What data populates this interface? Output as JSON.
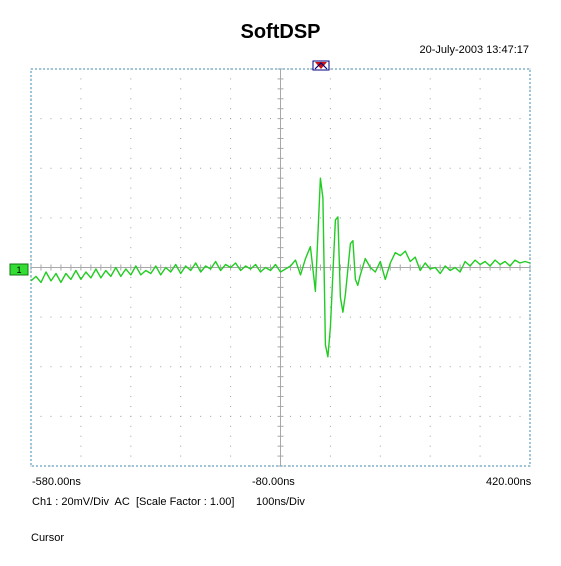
{
  "title": "SoftDSP",
  "timestamp": "20-July-2003 13:47:17",
  "channel": {
    "marker_label": "1",
    "status_parts": [
      "Ch1 : 20mV/Div",
      "AC",
      "[Scale Factor : 1.00]"
    ],
    "timebase": "100ns/Div"
  },
  "cursor_label": "Cursor",
  "colors": {
    "trace": "#22cc22",
    "grid_border": "#7fb2cc",
    "grid_dot": "#a0a0a0",
    "axis_line": "#a8a8a8",
    "trigger_marker": "#cc1111",
    "channel_marker": "#33dd33"
  },
  "chart_data": {
    "type": "line",
    "title": "SoftDSP",
    "xunit": "ns",
    "yunit": "mV",
    "tick_labels": [
      "-580.00ns",
      "-80.00ns",
      "420.00ns"
    ],
    "xlim": [
      -580,
      420
    ],
    "ylim": [
      -80,
      80
    ],
    "divisions": {
      "x": 10,
      "y": 8
    },
    "grid": true,
    "series": [
      {
        "points": [
          [
            -580,
            -5.4
          ],
          [
            -570,
            -3.6
          ],
          [
            -560,
            -6.0
          ],
          [
            -550,
            -1.8
          ],
          [
            -540,
            -5.4
          ],
          [
            -530,
            -2.4
          ],
          [
            -520,
            -6.0
          ],
          [
            -510,
            -2.4
          ],
          [
            -500,
            -4.8
          ],
          [
            -490,
            -1.2
          ],
          [
            -480,
            -4.8
          ],
          [
            -470,
            -1.8
          ],
          [
            -460,
            -4.2
          ],
          [
            -450,
            -0.6
          ],
          [
            -440,
            -4.2
          ],
          [
            -430,
            -1.2
          ],
          [
            -420,
            -3.6
          ],
          [
            -410,
            0.0
          ],
          [
            -400,
            -3.6
          ],
          [
            -390,
            -0.6
          ],
          [
            -380,
            -3.0
          ],
          [
            -370,
            0.6
          ],
          [
            -360,
            -3.0
          ],
          [
            -350,
            -1.2
          ],
          [
            -340,
            -2.4
          ],
          [
            -330,
            0.6
          ],
          [
            -320,
            -3.0
          ],
          [
            -310,
            0.0
          ],
          [
            -300,
            -1.8
          ],
          [
            -290,
            1.2
          ],
          [
            -280,
            -2.4
          ],
          [
            -270,
            0.6
          ],
          [
            -260,
            -1.2
          ],
          [
            -250,
            1.8
          ],
          [
            -240,
            -1.8
          ],
          [
            -230,
            0.6
          ],
          [
            -220,
            -0.6
          ],
          [
            -210,
            2.4
          ],
          [
            -200,
            -1.2
          ],
          [
            -190,
            1.2
          ],
          [
            -180,
            0.0
          ],
          [
            -170,
            1.8
          ],
          [
            -160,
            -1.2
          ],
          [
            -150,
            0.6
          ],
          [
            -140,
            -0.6
          ],
          [
            -130,
            1.2
          ],
          [
            -120,
            -1.8
          ],
          [
            -110,
            0.0
          ],
          [
            -100,
            -1.2
          ],
          [
            -90,
            1.2
          ],
          [
            -80,
            -1.8
          ],
          [
            -70,
            -0.6
          ],
          [
            -60,
            0.6
          ],
          [
            -50,
            3.0
          ],
          [
            -40,
            -3.0
          ],
          [
            -30,
            3.6
          ],
          [
            -20,
            8.4
          ],
          [
            -10,
            -9.6
          ],
          [
            0,
            36.0
          ],
          [
            5,
            28.0
          ],
          [
            10,
            -31.2
          ],
          [
            15,
            -36.0
          ],
          [
            20,
            -24.0
          ],
          [
            30,
            19.2
          ],
          [
            35,
            20.4
          ],
          [
            40,
            -12.0
          ],
          [
            45,
            -18.0
          ],
          [
            50,
            -10.8
          ],
          [
            60,
            9.6
          ],
          [
            65,
            10.8
          ],
          [
            70,
            -4.8
          ],
          [
            75,
            -7.2
          ],
          [
            80,
            -3.0
          ],
          [
            90,
            3.6
          ],
          [
            100,
            0.0
          ],
          [
            110,
            -1.8
          ],
          [
            120,
            2.4
          ],
          [
            130,
            -4.8
          ],
          [
            140,
            1.8
          ],
          [
            150,
            6.0
          ],
          [
            160,
            4.8
          ],
          [
            170,
            6.6
          ],
          [
            180,
            2.4
          ],
          [
            190,
            4.2
          ],
          [
            200,
            -1.2
          ],
          [
            210,
            1.8
          ],
          [
            220,
            -0.6
          ],
          [
            230,
            0.0
          ],
          [
            240,
            -2.4
          ],
          [
            250,
            0.6
          ],
          [
            260,
            -1.2
          ],
          [
            270,
            0.0
          ],
          [
            280,
            -1.8
          ],
          [
            290,
            2.4
          ],
          [
            300,
            0.6
          ],
          [
            310,
            3.0
          ],
          [
            320,
            1.2
          ],
          [
            330,
            2.4
          ],
          [
            340,
            0.6
          ],
          [
            350,
            3.0
          ],
          [
            360,
            1.2
          ],
          [
            370,
            2.4
          ],
          [
            380,
            0.6
          ],
          [
            390,
            3.0
          ],
          [
            400,
            1.8
          ],
          [
            410,
            2.4
          ],
          [
            420,
            1.8
          ]
        ]
      }
    ]
  }
}
